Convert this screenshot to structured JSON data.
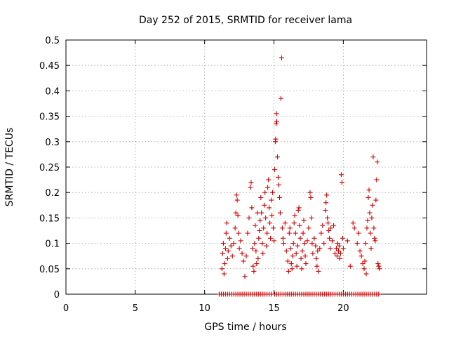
{
  "chart_data": {
    "type": "scatter",
    "title": "Day 252 of 2015, SRMTID for receiver lama",
    "xlabel": "GPS time / hours",
    "ylabel": "SRMTID / TECUs",
    "xlim": [
      0,
      26
    ],
    "ylim": [
      0,
      0.5
    ],
    "x_ticks": [
      0,
      5,
      10,
      15,
      20
    ],
    "x_tick_labels": [
      "0",
      "5",
      "10",
      "15",
      "20"
    ],
    "y_ticks": [
      0,
      0.05,
      0.1,
      0.15,
      0.2,
      0.25,
      0.3,
      0.35,
      0.4,
      0.45,
      0.5
    ],
    "y_tick_labels": [
      "0",
      "0.05",
      "0.1",
      "0.15",
      "0.2",
      "0.25",
      "0.3",
      "0.35",
      "0.4",
      "0.45",
      "0.5"
    ],
    "grid": true,
    "marker": "+",
    "color": "#cc0000",
    "series": [
      {
        "name": "SRMTID",
        "points": [
          [
            11.05,
            0
          ],
          [
            11.2,
            0
          ],
          [
            11.35,
            0
          ],
          [
            11.5,
            0
          ],
          [
            11.65,
            0
          ],
          [
            11.8,
            0
          ],
          [
            11.95,
            0
          ],
          [
            12.1,
            0
          ],
          [
            12.25,
            0
          ],
          [
            12.4,
            0
          ],
          [
            12.55,
            0
          ],
          [
            12.7,
            0
          ],
          [
            12.85,
            0
          ],
          [
            13.0,
            0
          ],
          [
            13.15,
            0
          ],
          [
            13.3,
            0
          ],
          [
            13.45,
            0
          ],
          [
            13.6,
            0
          ],
          [
            13.75,
            0
          ],
          [
            13.9,
            0
          ],
          [
            14.05,
            0
          ],
          [
            14.2,
            0
          ],
          [
            14.35,
            0
          ],
          [
            14.5,
            0
          ],
          [
            14.65,
            0
          ],
          [
            14.8,
            0
          ],
          [
            15.05,
            0
          ],
          [
            15.2,
            0
          ],
          [
            15.35,
            0
          ],
          [
            15.5,
            0
          ],
          [
            15.65,
            0
          ],
          [
            15.8,
            0
          ],
          [
            15.95,
            0
          ],
          [
            16.1,
            0
          ],
          [
            16.25,
            0
          ],
          [
            16.4,
            0
          ],
          [
            16.55,
            0
          ],
          [
            16.7,
            0
          ],
          [
            16.85,
            0
          ],
          [
            17.0,
            0
          ],
          [
            17.15,
            0
          ],
          [
            17.3,
            0
          ],
          [
            17.45,
            0
          ],
          [
            17.6,
            0
          ],
          [
            17.75,
            0
          ],
          [
            17.9,
            0
          ],
          [
            18.05,
            0
          ],
          [
            18.2,
            0
          ],
          [
            18.35,
            0
          ],
          [
            18.5,
            0
          ],
          [
            18.65,
            0
          ],
          [
            18.8,
            0
          ],
          [
            18.95,
            0
          ],
          [
            19.1,
            0
          ],
          [
            19.25,
            0
          ],
          [
            19.4,
            0
          ],
          [
            19.55,
            0
          ],
          [
            19.7,
            0
          ],
          [
            19.85,
            0
          ],
          [
            20.0,
            0
          ],
          [
            20.15,
            0
          ],
          [
            20.3,
            0
          ],
          [
            20.45,
            0
          ],
          [
            20.6,
            0
          ],
          [
            20.75,
            0
          ],
          [
            20.9,
            0
          ],
          [
            21.05,
            0
          ],
          [
            21.2,
            0
          ],
          [
            21.35,
            0
          ],
          [
            21.5,
            0
          ],
          [
            21.65,
            0
          ],
          [
            21.8,
            0
          ],
          [
            21.95,
            0
          ],
          [
            22.1,
            0
          ],
          [
            22.25,
            0
          ],
          [
            22.4,
            0
          ],
          [
            22.55,
            0
          ],
          [
            11.25,
            0.05
          ],
          [
            11.3,
            0.08
          ],
          [
            11.35,
            0.1
          ],
          [
            11.4,
            0.04
          ],
          [
            11.45,
            0.06
          ],
          [
            11.5,
            0.09
          ],
          [
            11.55,
            0.12
          ],
          [
            11.6,
            0.14
          ],
          [
            11.65,
            0.07
          ],
          [
            11.7,
            0.085
          ],
          [
            11.8,
            0.11
          ],
          [
            11.9,
            0.095
          ],
          [
            12.0,
            0.075
          ],
          [
            12.1,
            0.1
          ],
          [
            12.2,
            0.13
          ],
          [
            12.25,
            0.16
          ],
          [
            12.3,
            0.195
          ],
          [
            12.35,
            0.185
          ],
          [
            12.4,
            0.155
          ],
          [
            12.45,
            0.12
          ],
          [
            12.5,
            0.09
          ],
          [
            12.6,
            0.105
          ],
          [
            12.7,
            0.08
          ],
          [
            12.8,
            0.065
          ],
          [
            12.9,
            0.035
          ],
          [
            13.0,
            0.075
          ],
          [
            13.1,
            0.12
          ],
          [
            13.2,
            0.15
          ],
          [
            13.3,
            0.21
          ],
          [
            13.35,
            0.22
          ],
          [
            13.4,
            0.17
          ],
          [
            13.45,
            0.09
          ],
          [
            13.5,
            0.055
          ],
          [
            13.55,
            0.045
          ],
          [
            13.6,
            0.1
          ],
          [
            13.65,
            0.135
          ],
          [
            13.7,
            0.085
          ],
          [
            13.75,
            0.06
          ],
          [
            13.8,
            0.16
          ],
          [
            13.85,
            0.07
          ],
          [
            13.9,
            0.11
          ],
          [
            13.95,
            0.125
          ],
          [
            14.0,
            0.145
          ],
          [
            14.05,
            0.19
          ],
          [
            14.1,
            0.16
          ],
          [
            14.15,
            0.1
          ],
          [
            14.2,
            0.08
          ],
          [
            14.25,
            0.13
          ],
          [
            14.3,
            0.175
          ],
          [
            14.35,
            0.2
          ],
          [
            14.4,
            0.15
          ],
          [
            14.45,
            0.095
          ],
          [
            14.5,
            0.12
          ],
          [
            14.55,
            0.21
          ],
          [
            14.6,
            0.225
          ],
          [
            14.65,
            0.17
          ],
          [
            14.7,
            0.14
          ],
          [
            14.75,
            0.11
          ],
          [
            14.8,
            0.185
          ],
          [
            14.85,
            0.155
          ],
          [
            14.9,
            0.2
          ],
          [
            14.95,
            0.13
          ],
          [
            15.0,
            0.105
          ],
          [
            15.05,
            0.245
          ],
          [
            15.1,
            0.3
          ],
          [
            15.12,
            0.305
          ],
          [
            15.15,
            0.335
          ],
          [
            15.18,
            0.355
          ],
          [
            15.2,
            0.34
          ],
          [
            15.25,
            0.27
          ],
          [
            15.3,
            0.23
          ],
          [
            15.35,
            0.215
          ],
          [
            15.4,
            0.19
          ],
          [
            15.45,
            0.16
          ],
          [
            15.5,
            0.385
          ],
          [
            15.55,
            0.465
          ],
          [
            15.6,
            0.13
          ],
          [
            15.65,
            0.11
          ],
          [
            15.7,
            0.1
          ],
          [
            15.8,
            0.14
          ],
          [
            15.9,
            0.085
          ],
          [
            16.0,
            0.065
          ],
          [
            16.05,
            0.045
          ],
          [
            16.1,
            0.12
          ],
          [
            16.15,
            0.13
          ],
          [
            16.2,
            0.09
          ],
          [
            16.25,
            0.06
          ],
          [
            16.3,
            0.05
          ],
          [
            16.35,
            0.075
          ],
          [
            16.4,
            0.1
          ],
          [
            16.45,
            0.14
          ],
          [
            16.5,
            0.155
          ],
          [
            16.55,
            0.12
          ],
          [
            16.6,
            0.08
          ],
          [
            16.65,
            0.055
          ],
          [
            16.7,
            0.095
          ],
          [
            16.75,
            0.165
          ],
          [
            16.8,
            0.17
          ],
          [
            16.85,
            0.135
          ],
          [
            16.9,
            0.11
          ],
          [
            16.95,
            0.07
          ],
          [
            17.0,
            0.05
          ],
          [
            17.05,
            0.085
          ],
          [
            17.1,
            0.12
          ],
          [
            17.15,
            0.145
          ],
          [
            17.2,
            0.1
          ],
          [
            17.25,
            0.075
          ],
          [
            17.3,
            0.06
          ],
          [
            17.4,
            0.105
          ],
          [
            17.5,
            0.13
          ],
          [
            17.6,
            0.2
          ],
          [
            17.65,
            0.19
          ],
          [
            17.7,
            0.15
          ],
          [
            17.75,
            0.1
          ],
          [
            17.8,
            0.08
          ],
          [
            17.9,
            0.11
          ],
          [
            18.0,
            0.095
          ],
          [
            18.05,
            0.07
          ],
          [
            18.1,
            0.055
          ],
          [
            18.15,
            0.085
          ],
          [
            18.2,
            0.045
          ],
          [
            18.3,
            0.09
          ],
          [
            18.4,
            0.12
          ],
          [
            18.5,
            0.135
          ],
          [
            18.6,
            0.1
          ],
          [
            18.7,
            0.165
          ],
          [
            18.75,
            0.18
          ],
          [
            18.8,
            0.195
          ],
          [
            18.85,
            0.15
          ],
          [
            18.9,
            0.14
          ],
          [
            18.95,
            0.125
          ],
          [
            19.0,
            0.11
          ],
          [
            19.05,
            0.09
          ],
          [
            19.1,
            0.13
          ],
          [
            19.2,
            0.105
          ],
          [
            19.3,
            0.135
          ],
          [
            19.4,
            0.08
          ],
          [
            19.5,
            0.09
          ],
          [
            19.55,
            0.075
          ],
          [
            19.6,
            0.1
          ],
          [
            19.65,
            0.085
          ],
          [
            19.7,
            0.095
          ],
          [
            19.75,
            0.07
          ],
          [
            19.8,
            0.08
          ],
          [
            19.85,
            0.235
          ],
          [
            19.9,
            0.22
          ],
          [
            19.95,
            0.11
          ],
          [
            20.0,
            0.09
          ],
          [
            20.3,
            0.105
          ],
          [
            20.5,
            0.055
          ],
          [
            20.7,
            0.14
          ],
          [
            20.8,
            0.13
          ],
          [
            21.0,
            0.1
          ],
          [
            21.1,
            0.12
          ],
          [
            21.2,
            0.085
          ],
          [
            21.3,
            0.075
          ],
          [
            21.4,
            0.06
          ],
          [
            21.5,
            0.05
          ],
          [
            21.55,
            0.065
          ],
          [
            21.6,
            0.1
          ],
          [
            21.65,
            0.04
          ],
          [
            21.7,
            0.13
          ],
          [
            21.75,
            0.145
          ],
          [
            21.8,
            0.19
          ],
          [
            21.85,
            0.205
          ],
          [
            21.9,
            0.16
          ],
          [
            21.95,
            0.12
          ],
          [
            22.0,
            0.09
          ],
          [
            22.05,
            0.15
          ],
          [
            22.1,
            0.175
          ],
          [
            22.15,
            0.27
          ],
          [
            22.2,
            0.13
          ],
          [
            22.25,
            0.11
          ],
          [
            22.3,
            0.105
          ],
          [
            22.35,
            0.185
          ],
          [
            22.4,
            0.225
          ],
          [
            22.45,
            0.26
          ],
          [
            22.5,
            0.06
          ],
          [
            22.55,
            0.055
          ],
          [
            22.6,
            0.05
          ]
        ]
      }
    ]
  }
}
